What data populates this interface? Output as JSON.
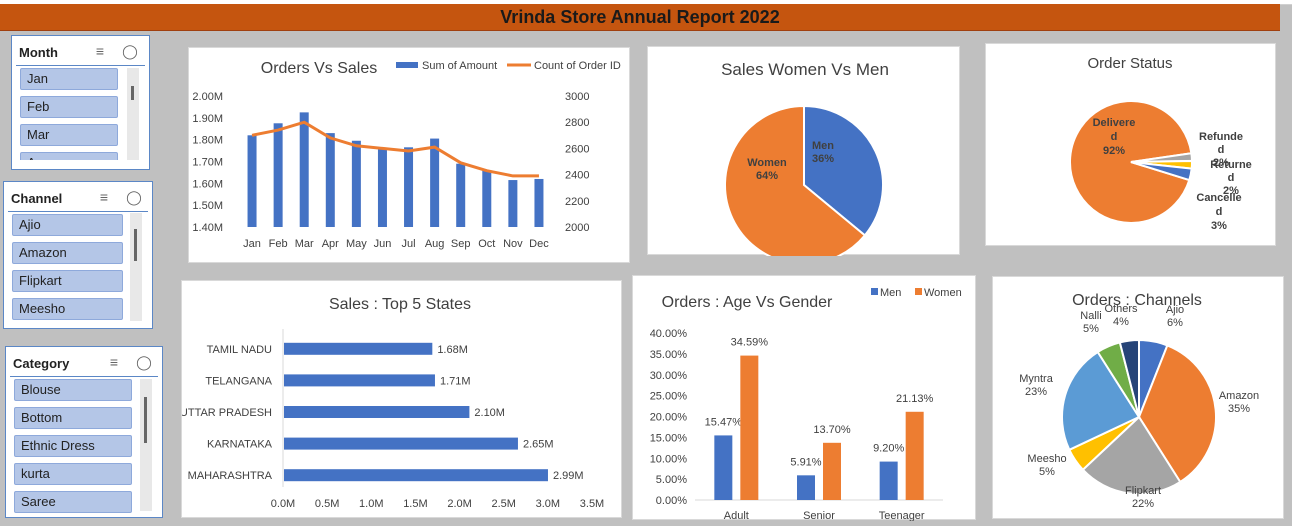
{
  "report_title": "Vrinda Store Annual Report 2022",
  "slicers": {
    "month": {
      "title": "Month",
      "items": [
        "Jan",
        "Feb",
        "Mar",
        "A"
      ]
    },
    "channel": {
      "title": "Channel",
      "items": [
        "Ajio",
        "Amazon",
        "Flipkart",
        "Meesho"
      ]
    },
    "category": {
      "title": "Category",
      "items": [
        "Blouse",
        "Bottom",
        "Ethnic Dress",
        "kurta",
        "Saree"
      ]
    }
  },
  "colors": {
    "blue": "#4472c4",
    "orange": "#ed7d31",
    "gray": "#a5a5a5",
    "yellow": "#ffc000",
    "lightblue": "#5b9bd5",
    "green": "#70ad47",
    "navy": "#264478"
  },
  "chart_data": [
    {
      "type": "bar",
      "title": "Orders Vs Sales",
      "categories": [
        "Jan",
        "Feb",
        "Mar",
        "Apr",
        "May",
        "Jun",
        "Jul",
        "Aug",
        "Sep",
        "Oct",
        "Nov",
        "Dec"
      ],
      "series": [
        {
          "name": "Sum of Amount",
          "type": "bar",
          "axis": "left",
          "values": [
            1820000,
            1875000,
            1925000,
            1830000,
            1795000,
            1755000,
            1765000,
            1805000,
            1690000,
            1660000,
            1615000,
            1620000
          ]
        },
        {
          "name": "Count of Order ID",
          "type": "line",
          "axis": "right",
          "values": [
            2700,
            2740,
            2800,
            2680,
            2620,
            2600,
            2580,
            2610,
            2490,
            2430,
            2390,
            2390
          ]
        }
      ],
      "y_left_ticks": [
        "1.40M",
        "1.50M",
        "1.60M",
        "1.70M",
        "1.80M",
        "1.90M",
        "2.00M"
      ],
      "ylim_left": [
        1400000,
        2000000
      ],
      "y_right_ticks": [
        "2000",
        "2200",
        "2400",
        "2600",
        "2800",
        "3000"
      ],
      "ylim_right": [
        2000,
        3000
      ],
      "legend": "top-right"
    },
    {
      "type": "pie",
      "title": "Sales Women Vs Men",
      "labels": [
        "Men",
        "Women"
      ],
      "values": [
        36,
        64
      ],
      "data_labels": [
        "Men\n36%",
        "Women\n64%"
      ]
    },
    {
      "type": "pie",
      "title": "Order Status",
      "labels": [
        "Delivered",
        "Refunded",
        "Returned",
        "Cancelled"
      ],
      "values": [
        92,
        2,
        2,
        3
      ],
      "data_labels": [
        "Delivere\nd\n92%",
        "Refunde\nd\n2%",
        "Returne\nd\n2%",
        "Cancelle\nd\n3%"
      ]
    },
    {
      "type": "bar",
      "orientation": "horizontal",
      "title": "Sales : Top 5 States",
      "categories": [
        "TAMIL NADU",
        "TELANGANA",
        "UTTAR PRADESH",
        "KARNATAKA",
        "MAHARASHTRA"
      ],
      "values": [
        1.68,
        1.71,
        2.1,
        2.65,
        2.99
      ],
      "data_labels": [
        "1.68M",
        "1.71M",
        "2.10M",
        "2.65M",
        "2.99M"
      ],
      "x_ticks": [
        "0.0M",
        "0.5M",
        "1.0M",
        "1.5M",
        "2.0M",
        "2.5M",
        "3.0M",
        "3.5M"
      ],
      "xlim": [
        0,
        3.5
      ]
    },
    {
      "type": "bar",
      "title": "Orders : Age Vs Gender",
      "categories": [
        "Adult",
        "Senior",
        "Teenager"
      ],
      "series": [
        {
          "name": "Men",
          "values": [
            15.47,
            5.91,
            9.2
          ],
          "labels": [
            "15.47%",
            "5.91%",
            "9.20%"
          ]
        },
        {
          "name": "Women",
          "values": [
            34.59,
            13.7,
            21.13
          ],
          "labels": [
            "34.59%",
            "13.70%",
            "21.13%"
          ]
        }
      ],
      "y_ticks": [
        "0.00%",
        "5.00%",
        "10.00%",
        "15.00%",
        "20.00%",
        "25.00%",
        "30.00%",
        "35.00%",
        "40.00%"
      ],
      "ylim": [
        0,
        40
      ],
      "legend": "top-right"
    },
    {
      "type": "pie",
      "title": "Orders : Channels",
      "labels": [
        "Ajio",
        "Amazon",
        "Flipkart",
        "Meesho",
        "Myntra",
        "Nalli",
        "Others"
      ],
      "values": [
        6,
        35,
        22,
        5,
        23,
        5,
        4
      ],
      "data_labels": [
        "Ajio\n6%",
        "Amazon\n35%",
        "Flipkart\n22%",
        "Meesho\n5%",
        "Myntra\n23%",
        "Nalli\n5%",
        "Others\n4%"
      ]
    }
  ]
}
